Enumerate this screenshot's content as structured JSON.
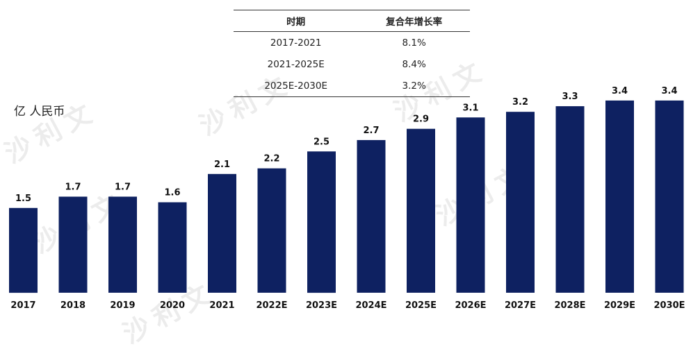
{
  "chart_data": {
    "type": "bar",
    "unit_label": "亿 人民币",
    "categories": [
      "2017",
      "2018",
      "2019",
      "2020",
      "2021",
      "2022E",
      "2023E",
      "2024E",
      "2025E",
      "2026E",
      "2027E",
      "2028E",
      "2029E",
      "2030E"
    ],
    "values": [
      1.5,
      1.7,
      1.7,
      1.6,
      2.1,
      2.2,
      2.5,
      2.7,
      2.9,
      3.1,
      3.2,
      3.3,
      3.4,
      3.4
    ],
    "ylim": [
      0,
      3.6
    ],
    "grid": false,
    "bar_color": "#0e2161"
  },
  "cagr_table": {
    "headers": [
      "时期",
      "复合年增长率"
    ],
    "rows": [
      [
        "2017-2021",
        "8.1%"
      ],
      [
        "2021-2025E",
        "8.4%"
      ],
      [
        "2025E-2030E",
        "3.2%"
      ]
    ]
  },
  "watermark": "沙利文"
}
